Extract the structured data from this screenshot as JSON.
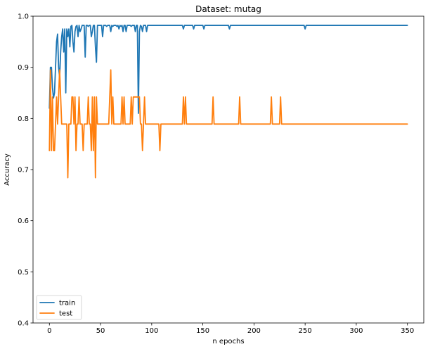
{
  "chart_data": {
    "type": "line",
    "title": "Dataset: mutag",
    "xlabel": "n epochs",
    "ylabel": "Accuracy",
    "xlim": [
      -16,
      366
    ],
    "ylim": [
      0.4,
      1.0
    ],
    "xticks": [
      0,
      50,
      100,
      150,
      200,
      250,
      300,
      350
    ],
    "xtick_labels": [
      "0",
      "50",
      "100",
      "150",
      "200",
      "250",
      "300",
      "350"
    ],
    "yticks": [
      0.4,
      0.5,
      0.6,
      0.7,
      0.8,
      0.9,
      1.0
    ],
    "ytick_labels": [
      "0.4",
      "0.5",
      "0.6",
      "0.7",
      "0.8",
      "0.9",
      "1.0"
    ],
    "grid": false,
    "legend": {
      "position": "lower-left",
      "entries": [
        "train",
        "test"
      ]
    },
    "series": [
      {
        "name": "train",
        "color": "#1f77b4",
        "x": [
          0,
          1,
          2,
          3,
          4,
          5,
          6,
          7,
          8,
          9,
          10,
          11,
          12,
          13,
          14,
          15,
          16,
          17,
          18,
          19,
          20,
          21,
          22,
          23,
          24,
          25,
          26,
          27,
          28,
          29,
          30,
          31,
          32,
          33,
          34,
          35,
          36,
          37,
          38,
          39,
          40,
          41,
          42,
          43,
          44,
          45,
          46,
          47,
          48,
          49,
          50,
          51,
          52,
          53,
          54,
          55,
          56,
          57,
          58,
          59,
          60,
          61,
          62,
          63,
          64,
          65,
          66,
          67,
          68,
          69,
          70,
          71,
          72,
          73,
          74,
          75,
          76,
          77,
          78,
          79,
          80,
          81,
          82,
          83,
          84,
          85,
          86,
          87,
          88,
          89,
          90,
          91,
          92,
          93,
          94,
          95,
          96,
          97,
          98,
          99,
          100,
          130,
          131,
          132,
          133,
          140,
          141,
          142,
          143,
          150,
          151,
          152,
          153,
          175,
          176,
          177,
          249,
          250,
          251,
          350
        ],
        "y": [
          0.82,
          0.9,
          0.9,
          0.86,
          0.84,
          0.85,
          0.9,
          0.95,
          0.965,
          0.9,
          0.88,
          0.93,
          0.96,
          0.975,
          0.93,
          0.975,
          0.85,
          0.975,
          0.96,
          0.975,
          0.94,
          0.98,
          0.982,
          0.95,
          0.93,
          0.97,
          0.98,
          0.982,
          0.96,
          0.982,
          0.97,
          0.975,
          0.982,
          0.982,
          0.982,
          0.92,
          0.982,
          0.982,
          0.98,
          0.982,
          0.982,
          0.96,
          0.97,
          0.982,
          0.982,
          0.94,
          0.91,
          0.982,
          0.982,
          0.982,
          0.982,
          0.982,
          0.96,
          0.982,
          0.982,
          0.982,
          0.98,
          0.982,
          0.982,
          0.982,
          0.97,
          0.982,
          0.98,
          0.982,
          0.982,
          0.982,
          0.98,
          0.982,
          0.975,
          0.982,
          0.98,
          0.982,
          0.97,
          0.982,
          0.982,
          0.97,
          0.982,
          0.982,
          0.982,
          0.982,
          0.98,
          0.982,
          0.982,
          0.982,
          0.97,
          0.982,
          0.982,
          0.81,
          0.97,
          0.982,
          0.98,
          0.97,
          0.982,
          0.982,
          0.982,
          0.97,
          0.982,
          0.982,
          0.982,
          0.982,
          0.982,
          0.982,
          0.975,
          0.982,
          0.982,
          0.982,
          0.975,
          0.982,
          0.982,
          0.982,
          0.975,
          0.982,
          0.982,
          0.982,
          0.975,
          0.982,
          0.982,
          0.975,
          0.982,
          0.982
        ]
      },
      {
        "name": "test",
        "color": "#ff7f0e",
        "x": [
          0,
          1,
          2,
          3,
          4,
          5,
          6,
          7,
          8,
          9,
          10,
          11,
          12,
          13,
          14,
          15,
          16,
          17,
          18,
          19,
          20,
          21,
          22,
          23,
          24,
          25,
          26,
          27,
          28,
          29,
          30,
          31,
          32,
          33,
          34,
          35,
          36,
          37,
          38,
          39,
          40,
          41,
          42,
          43,
          44,
          45,
          46,
          47,
          48,
          49,
          50,
          51,
          52,
          53,
          54,
          55,
          56,
          57,
          58,
          59,
          60,
          61,
          62,
          63,
          64,
          65,
          66,
          67,
          68,
          69,
          70,
          71,
          72,
          73,
          74,
          75,
          76,
          77,
          78,
          79,
          80,
          81,
          82,
          83,
          84,
          85,
          86,
          87,
          88,
          89,
          90,
          91,
          92,
          93,
          94,
          95,
          96,
          97,
          98,
          99,
          100,
          101,
          107,
          108,
          109,
          110,
          111,
          130,
          131,
          132,
          133,
          134,
          135,
          136,
          159,
          160,
          161,
          185,
          186,
          187,
          216,
          217,
          218,
          225,
          226,
          227,
          350
        ],
        "y": [
          0.737,
          0.895,
          0.737,
          0.842,
          0.737,
          0.737,
          0.789,
          0.842,
          0.789,
          0.842,
          0.895,
          0.842,
          0.789,
          0.789,
          0.789,
          0.789,
          0.789,
          0.789,
          0.684,
          0.789,
          0.789,
          0.789,
          0.842,
          0.842,
          0.789,
          0.842,
          0.737,
          0.789,
          0.789,
          0.842,
          0.789,
          0.789,
          0.789,
          0.737,
          0.789,
          0.789,
          0.789,
          0.789,
          0.842,
          0.789,
          0.789,
          0.737,
          0.842,
          0.737,
          0.842,
          0.684,
          0.842,
          0.789,
          0.789,
          0.789,
          0.789,
          0.789,
          0.789,
          0.789,
          0.789,
          0.789,
          0.789,
          0.789,
          0.789,
          0.842,
          0.895,
          0.789,
          0.842,
          0.789,
          0.789,
          0.789,
          0.789,
          0.789,
          0.789,
          0.789,
          0.789,
          0.842,
          0.789,
          0.842,
          0.789,
          0.789,
          0.789,
          0.789,
          0.789,
          0.789,
          0.842,
          0.789,
          0.842,
          0.842,
          0.842,
          0.842,
          0.842,
          0.842,
          0.842,
          0.789,
          0.789,
          0.737,
          0.789,
          0.842,
          0.789,
          0.789,
          0.789,
          0.789,
          0.789,
          0.789,
          0.789,
          0.789,
          0.789,
          0.737,
          0.789,
          0.789,
          0.789,
          0.789,
          0.842,
          0.789,
          0.842,
          0.789,
          0.789,
          0.789,
          0.789,
          0.842,
          0.789,
          0.789,
          0.842,
          0.789,
          0.789,
          0.842,
          0.789,
          0.789,
          0.842,
          0.789,
          0.789
        ]
      }
    ]
  }
}
